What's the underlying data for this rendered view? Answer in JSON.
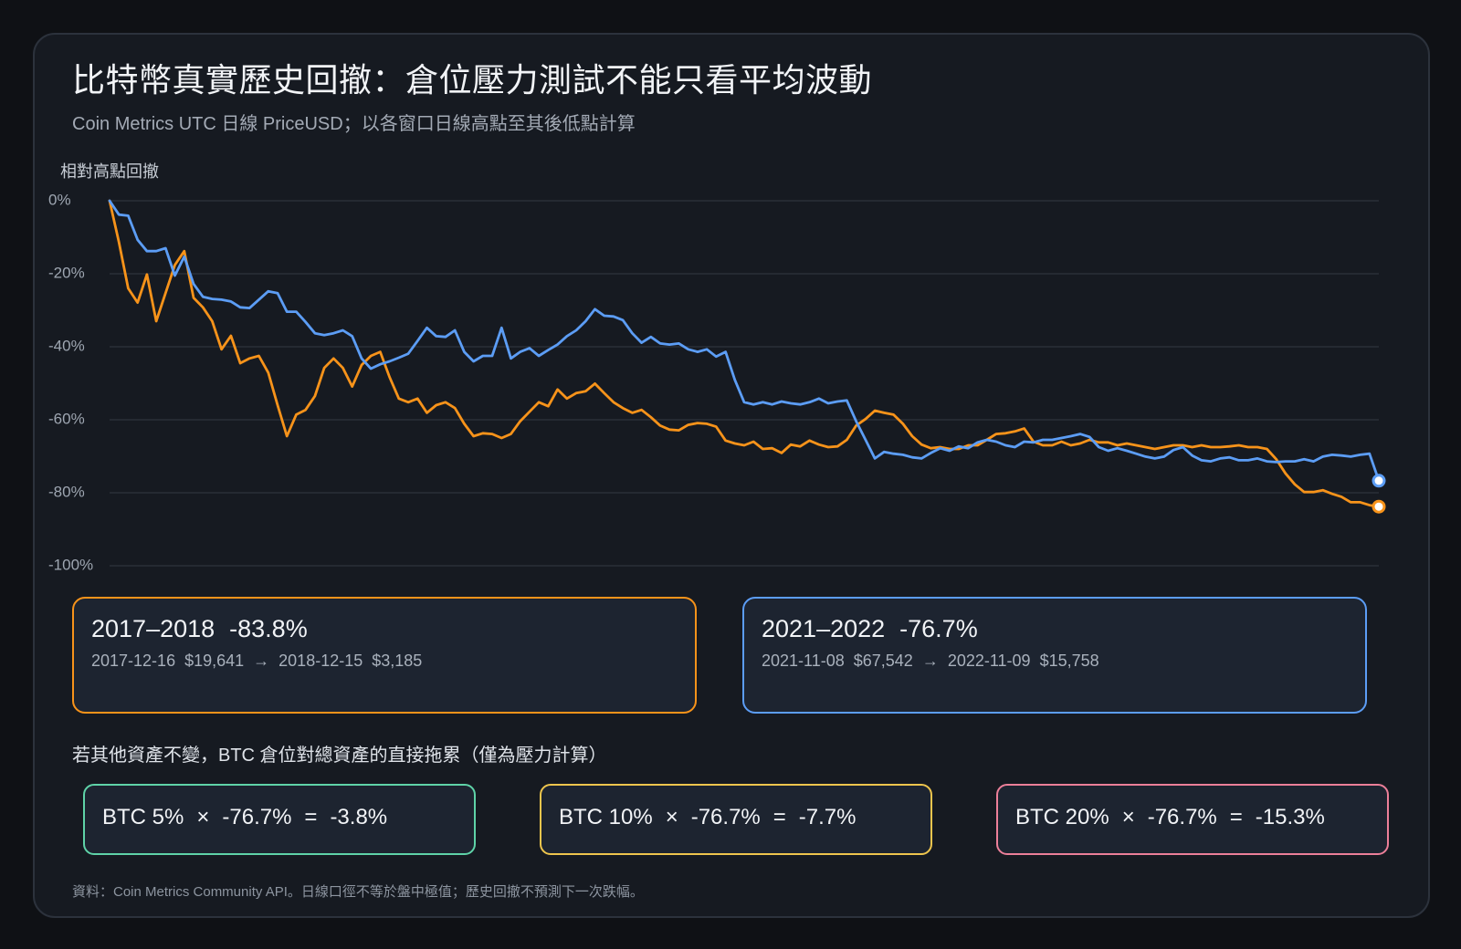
{
  "header": {
    "title": "比特幣真實歷史回撤：倉位壓力測試不能只看平均波動",
    "subtitle": "Coin Metrics UTC 日線 PriceUSD；以各窗口日線高點至其後低點計算"
  },
  "chart_data": {
    "type": "line",
    "ylabel": "相對高點回撤",
    "ylim": [
      -100,
      0
    ],
    "yticks": [
      0,
      -20,
      -40,
      -60,
      -80,
      -100
    ],
    "ytick_labels": [
      "0%",
      "-20%",
      "-40%",
      "-60%",
      "-80%",
      "-100%"
    ],
    "grid": true,
    "end_markers": true,
    "series": [
      {
        "name": "2017–2018",
        "color": "#F7931A",
        "values": [
          0,
          -11.3,
          -24.0,
          -27.9,
          -20.2,
          -33.0,
          -25.3,
          -17.6,
          -13.8,
          -26.6,
          -29.2,
          -33.0,
          -40.7,
          -37.0,
          -44.5,
          -43.2,
          -42.5,
          -47.1,
          -56.0,
          -64.5,
          -58.6,
          -57.3,
          -53.5,
          -45.8,
          -43.2,
          -45.8,
          -50.9,
          -45.0,
          -42.5,
          -41.4,
          -48.3,
          -54.2,
          -55.2,
          -54.2,
          -58.1,
          -56.0,
          -55.2,
          -56.8,
          -61.1,
          -64.5,
          -63.7,
          -63.9,
          -65.0,
          -63.9,
          -60.4,
          -57.8,
          -55.2,
          -56.3,
          -51.7,
          -54.2,
          -52.7,
          -52.2,
          -50.1,
          -52.7,
          -55.2,
          -56.8,
          -58.1,
          -57.3,
          -59.3,
          -61.6,
          -62.7,
          -62.9,
          -61.4,
          -60.9,
          -61.1,
          -61.9,
          -65.7,
          -66.5,
          -67.0,
          -66.0,
          -68.0,
          -67.8,
          -69.1,
          -66.8,
          -67.3,
          -65.7,
          -66.8,
          -67.5,
          -67.3,
          -65.5,
          -61.6,
          -59.8,
          -57.5,
          -58.1,
          -58.6,
          -61.1,
          -64.5,
          -66.8,
          -67.8,
          -67.5,
          -68.0,
          -68.0,
          -67.0,
          -67.0,
          -65.5,
          -63.9,
          -63.7,
          -63.2,
          -62.4,
          -66.0,
          -67.0,
          -67.0,
          -66.0,
          -67.0,
          -66.5,
          -65.5,
          -66.2,
          -66.2,
          -67.0,
          -66.5,
          -67.0,
          -67.5,
          -68.0,
          -67.5,
          -67.0,
          -67.0,
          -67.5,
          -67.0,
          -67.5,
          -67.5,
          -67.3,
          -67.0,
          -67.5,
          -67.5,
          -68.0,
          -70.8,
          -74.7,
          -77.7,
          -79.8,
          -79.8,
          -79.3,
          -80.3,
          -81.1,
          -82.6,
          -82.6,
          -83.4,
          -83.8
        ]
      },
      {
        "name": "2021–2022",
        "color": "#5C9DF5",
        "values": [
          0,
          -3.8,
          -4.1,
          -10.7,
          -13.8,
          -13.8,
          -13.0,
          -20.5,
          -15.3,
          -22.8,
          -26.3,
          -26.9,
          -27.1,
          -27.6,
          -29.2,
          -29.4,
          -27.1,
          -24.8,
          -25.3,
          -30.4,
          -30.4,
          -33.2,
          -36.3,
          -36.8,
          -36.3,
          -35.5,
          -37.1,
          -43.2,
          -46.0,
          -44.8,
          -44.0,
          -43.0,
          -41.9,
          -38.4,
          -34.8,
          -37.1,
          -37.3,
          -35.5,
          -41.4,
          -44.0,
          -42.5,
          -42.5,
          -34.8,
          -43.2,
          -41.4,
          -40.4,
          -42.5,
          -40.9,
          -39.4,
          -37.1,
          -35.5,
          -33.0,
          -29.7,
          -31.5,
          -31.7,
          -32.7,
          -36.3,
          -38.9,
          -37.3,
          -39.1,
          -39.4,
          -39.1,
          -40.7,
          -41.4,
          -40.7,
          -42.7,
          -41.4,
          -49.1,
          -55.2,
          -55.8,
          -55.2,
          -55.8,
          -55.0,
          -55.5,
          -55.8,
          -55.2,
          -54.2,
          -55.5,
          -55.0,
          -54.7,
          -60.4,
          -65.5,
          -70.6,
          -68.8,
          -69.3,
          -69.6,
          -70.3,
          -70.6,
          -69.1,
          -67.8,
          -68.5,
          -67.3,
          -67.8,
          -66.2,
          -65.5,
          -66.0,
          -67.0,
          -67.5,
          -66.0,
          -66.2,
          -65.5,
          -65.5,
          -65.0,
          -64.5,
          -63.9,
          -64.7,
          -67.5,
          -68.5,
          -67.8,
          -68.5,
          -69.3,
          -70.1,
          -70.6,
          -70.1,
          -68.3,
          -67.5,
          -69.8,
          -71.1,
          -71.4,
          -70.6,
          -70.3,
          -71.1,
          -71.1,
          -70.6,
          -71.4,
          -71.6,
          -71.4,
          -71.4,
          -70.8,
          -71.4,
          -70.1,
          -69.6,
          -69.8,
          -70.1,
          -69.6,
          -69.3,
          -76.7
        ]
      }
    ]
  },
  "periods": [
    {
      "drawdown": "-83.8%",
      "start_date": "2017-12-16",
      "start_price": "$19,641",
      "arrow": "→",
      "end_date": "2018-12-15",
      "end_price": "$3,185"
    },
    {
      "drawdown": "-76.7%",
      "start_date": "2021-11-08",
      "start_price": "$67,542",
      "arrow": "→",
      "end_date": "2022-11-09",
      "end_price": "$15,758"
    }
  ],
  "stress": {
    "caption": "若其他資產不變，BTC 倉位對總資產的直接拖累（僅為壓力計算）",
    "cards": [
      {
        "weight": "BTC 5%",
        "times": "×",
        "drawdown": "-76.7%",
        "equals": "=",
        "result": "-3.8%",
        "color": "#5FD3A8"
      },
      {
        "weight": "BTC 10%",
        "times": "×",
        "drawdown": "-76.7%",
        "equals": "=",
        "result": "-7.7%",
        "color": "#EEC54D"
      },
      {
        "weight": "BTC 20%",
        "times": "×",
        "drawdown": "-76.7%",
        "equals": "=",
        "result": "-15.3%",
        "color": "#EC7F99"
      }
    ]
  },
  "footer": {
    "note": "資料：Coin Metrics Community API。日線口徑不等於盤中極值；歷史回撤不預測下一次跌幅。"
  }
}
